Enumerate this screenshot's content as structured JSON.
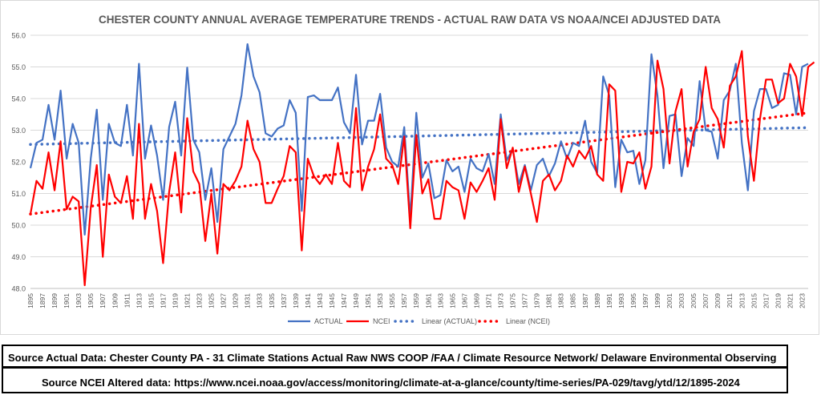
{
  "chart_data": {
    "type": "line",
    "title": "CHESTER COUNTY ANNUAL AVERAGE TEMPERATURE TRENDS - ACTUAL RAW DATA VS NOAA/NCEI ADJUSTED DATA",
    "xlabel": "",
    "ylabel": "",
    "ylim": [
      48.0,
      56.0
    ],
    "y_ticks": [
      "48.0",
      "49.0",
      "50.0",
      "51.0",
      "52.0",
      "53.0",
      "54.0",
      "55.0",
      "56.0"
    ],
    "x_ticks": [
      "1895",
      "1897",
      "1899",
      "1901",
      "1903",
      "1905",
      "1907",
      "1909",
      "1911",
      "1913",
      "1915",
      "1917",
      "1919",
      "1921",
      "1923",
      "1925",
      "1927",
      "1929",
      "1931",
      "1933",
      "1935",
      "1937",
      "1939",
      "1941",
      "1943",
      "1945",
      "1947",
      "1949",
      "1951",
      "1953",
      "1955",
      "1957",
      "1959",
      "1961",
      "1963",
      "1965",
      "1967",
      "1969",
      "1971",
      "1973",
      "1975",
      "1977",
      "1979",
      "1981",
      "1983",
      "1985",
      "1987",
      "1989",
      "1991",
      "1993",
      "1995",
      "1997",
      "1999",
      "2001",
      "2003",
      "2005",
      "2007",
      "2009",
      "2011",
      "2013",
      "2015",
      "2017",
      "2019",
      "2021",
      "2023"
    ],
    "x_start": 1895,
    "x_end": 2024,
    "grid": true,
    "legend_position": "bottom",
    "series": [
      {
        "name": "ACTUAL",
        "color": "#4472C4",
        "style": "solid",
        "values": [
          51.8,
          52.6,
          52.7,
          53.8,
          52.7,
          54.25,
          52.1,
          53.2,
          52.6,
          49.7,
          52.1,
          53.65,
          50.8,
          53.2,
          52.6,
          52.5,
          53.8,
          52.2,
          55.1,
          52.1,
          53.15,
          52.2,
          50.8,
          53.1,
          53.9,
          52.2,
          54.98,
          52.7,
          52.3,
          50.8,
          51.8,
          50.1,
          52.4,
          52.8,
          53.2,
          54.1,
          55.72,
          54.7,
          54.2,
          52.9,
          52.8,
          53.05,
          53.15,
          53.95,
          53.55,
          50.45,
          54.05,
          54.1,
          53.95,
          53.95,
          53.95,
          54.35,
          53.25,
          52.9,
          54.75,
          52.55,
          53.3,
          53.3,
          54.15,
          52.45,
          52.0,
          51.85,
          53.1,
          50.2,
          53.55,
          51.5,
          51.95,
          50.85,
          50.95,
          52.05,
          51.7,
          51.85,
          51.05,
          52.1,
          51.8,
          51.7,
          52.25,
          51.3,
          53.5,
          52.05,
          52.4,
          51.3,
          51.9,
          51.1,
          51.9,
          52.1,
          51.55,
          51.95,
          52.65,
          52.1,
          52.6,
          52.5,
          53.3,
          52.0,
          51.65,
          54.7,
          54.1,
          51.2,
          52.7,
          52.3,
          52.35,
          51.3,
          52.05,
          55.4,
          54.1,
          51.8,
          53.45,
          53.5,
          51.55,
          52.75,
          52.5,
          54.55,
          53.0,
          52.95,
          52.1,
          53.95,
          54.25,
          55.1,
          52.6,
          51.1,
          53.6,
          54.3,
          54.3,
          53.7,
          53.8,
          54.8,
          54.75,
          53.5,
          55.0,
          55.1
        ]
      },
      {
        "name": "NCEI",
        "color": "#FF0000",
        "style": "solid",
        "values": [
          50.35,
          51.4,
          51.15,
          52.3,
          51.1,
          52.65,
          50.5,
          50.9,
          50.75,
          48.1,
          50.55,
          51.9,
          49.0,
          51.6,
          50.9,
          50.7,
          51.55,
          50.2,
          53.2,
          50.2,
          51.3,
          50.45,
          48.8,
          51.05,
          52.3,
          50.4,
          53.38,
          51.7,
          51.3,
          49.5,
          51.0,
          49.1,
          51.3,
          51.1,
          51.4,
          51.85,
          53.3,
          52.4,
          52.0,
          50.7,
          50.7,
          51.15,
          51.55,
          52.5,
          52.3,
          49.2,
          52.1,
          51.55,
          51.3,
          51.6,
          51.3,
          52.6,
          51.4,
          51.2,
          53.7,
          51.1,
          51.85,
          52.4,
          53.5,
          52.1,
          51.9,
          51.3,
          52.8,
          49.9,
          52.85,
          51.0,
          51.45,
          50.2,
          50.2,
          51.4,
          51.2,
          51.1,
          50.2,
          51.35,
          51.05,
          51.4,
          51.8,
          50.8,
          53.35,
          51.8,
          52.45,
          51.05,
          51.85,
          51.0,
          50.1,
          51.4,
          51.6,
          51.1,
          51.4,
          52.2,
          51.85,
          52.35,
          52.1,
          52.5,
          51.6,
          51.4,
          54.45,
          54.25,
          51.05,
          52.0,
          51.95,
          52.3,
          51.15,
          51.85,
          55.2,
          54.3,
          51.95,
          53.6,
          54.3,
          51.85,
          52.95,
          53.35,
          55.0,
          53.7,
          53.35,
          52.45,
          54.4,
          54.7,
          55.5,
          52.8,
          51.4,
          53.35,
          54.6,
          54.6,
          53.85,
          54.0,
          55.1,
          54.7,
          53.45,
          55.0,
          55.15
        ]
      },
      {
        "name": "Linear (ACTUAL)",
        "color": "#4472C4",
        "style": "dotted",
        "trend_of": "ACTUAL",
        "endpoints": [
          52.55,
          53.08
        ]
      },
      {
        "name": "Linear (NCEI)",
        "color": "#FF0000",
        "style": "dotted",
        "trend_of": "NCEI",
        "endpoints": [
          50.35,
          53.55
        ]
      }
    ]
  },
  "sources": {
    "actual": "Source Actual Data: Chester County PA - 31 Climate Stations Actual Raw NWS COOP /FAA / Climate Resource Network/ Delaware Environmental Observing System",
    "ncei": "Source NCEI Altered data:  https://www.ncei.noaa.gov/access/monitoring/climate-at-a-glance/county/time-series/PA-029/tavg/ytd/12/1895-2024"
  }
}
